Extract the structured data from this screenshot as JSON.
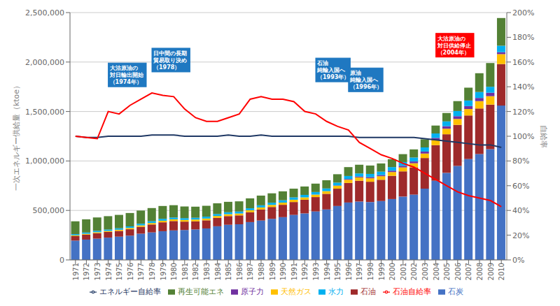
{
  "chart_data": {
    "type": "bar",
    "stacked": true,
    "grid": true,
    "legend": "bottom",
    "categories": [
      "1971",
      "1972",
      "1973",
      "1974",
      "1975",
      "1976",
      "1977",
      "1978",
      "1979",
      "1980",
      "1981",
      "1982",
      "1983",
      "1984",
      "1985",
      "1986",
      "1987",
      "1988",
      "1989",
      "1990",
      "1991",
      "1992",
      "1993",
      "1994",
      "1995",
      "1996",
      "1997",
      "1998",
      "1999",
      "2000",
      "2001",
      "2002",
      "2003",
      "2004",
      "2005",
      "2006",
      "2007",
      "2008",
      "2009",
      "2010"
    ],
    "series": [
      {
        "name": "石炭",
        "color": "#4472C4",
        "values": [
          195000,
          205000,
          215000,
          225000,
          235000,
          245000,
          265000,
          278000,
          290000,
          298000,
          302000,
          308000,
          318000,
          340000,
          355000,
          360000,
          382000,
          398000,
          415000,
          432000,
          455000,
          470000,
          490000,
          510000,
          545000,
          580000,
          590000,
          585000,
          595000,
          615000,
          640000,
          660000,
          720000,
          800000,
          880000,
          950000,
          1020000,
          1070000,
          1120000,
          1560000
        ]
      },
      {
        "name": "石油",
        "color": "#9E2A2B",
        "values": [
          45000,
          50000,
          55000,
          58000,
          58000,
          65000,
          70000,
          80000,
          90000,
          95000,
          85000,
          82000,
          82000,
          85000,
          88000,
          90000,
          100000,
          112000,
          120000,
          125000,
          130000,
          138000,
          145000,
          158000,
          175000,
          198000,
          210000,
          205000,
          215000,
          235000,
          255000,
          275000,
          310000,
          360000,
          390000,
          415000,
          440000,
          460000,
          450000,
          420000
        ]
      },
      {
        "name": "天然ガス",
        "color": "#FFC000",
        "values": [
          8000,
          9000,
          10000,
          10000,
          12000,
          13000,
          14000,
          15000,
          16000,
          17000,
          17000,
          18000,
          18000,
          19000,
          19000,
          19000,
          20000,
          20000,
          21000,
          22000,
          23000,
          24000,
          25000,
          27000,
          29000,
          32000,
          34000,
          35000,
          36000,
          38000,
          40000,
          42000,
          45000,
          50000,
          56000,
          60000,
          65000,
          75000,
          85000,
          100000
        ]
      },
      {
        "name": "原子力",
        "color": "#7030A0",
        "values": [
          0,
          0,
          0,
          0,
          0,
          0,
          0,
          0,
          0,
          0,
          0,
          0,
          0,
          0,
          0,
          0,
          0,
          0,
          0,
          0,
          0,
          0,
          0,
          0,
          4000,
          8000,
          10000,
          12000,
          12000,
          14000,
          16000,
          18000,
          20000,
          23000,
          26000,
          28000,
          30000,
          32000,
          35000,
          20000
        ]
      },
      {
        "name": "水力",
        "color": "#00B0F0",
        "values": [
          12000,
          13000,
          14000,
          14000,
          15000,
          16000,
          17000,
          18000,
          19000,
          18000,
          18000,
          18000,
          19000,
          20000,
          20000,
          20000,
          20000,
          22000,
          22000,
          24000,
          24000,
          25000,
          26000,
          27000,
          28000,
          30000,
          30000,
          32000,
          34000,
          36000,
          38000,
          40000,
          42000,
          45000,
          48000,
          52000,
          56000,
          60000,
          60000,
          65000
        ]
      },
      {
        "name": "再生可能エネ",
        "color": "#538135",
        "values": [
          130000,
          133000,
          135000,
          135000,
          135000,
          135000,
          133000,
          133000,
          130000,
          125000,
          118000,
          112000,
          110000,
          108000,
          105000,
          103000,
          100000,
          98000,
          95000,
          90000,
          88000,
          85000,
          85000,
          83000,
          85000,
          90000,
          88000,
          85000,
          83000,
          80000,
          80000,
          82000,
          82000,
          80000,
          85000,
          100000,
          130000,
          190000,
          240000,
          280000
        ]
      },
      {
        "name": "エネルギー自給率",
        "type": "line",
        "axis": "y2",
        "color": "#1F3864",
        "values": [
          100,
          99,
          99,
          100,
          100,
          100,
          100,
          101,
          101,
          101,
          100,
          100,
          100,
          100,
          101,
          100,
          100,
          101,
          100,
          100,
          100,
          100,
          100,
          100,
          100,
          100,
          99,
          99,
          99,
          99,
          99,
          99,
          98,
          97,
          96,
          95,
          94,
          93,
          93,
          91
        ]
      },
      {
        "name": "石油自給率",
        "type": "line",
        "axis": "y2",
        "color": "#FF0000",
        "values": [
          100,
          99,
          98,
          120,
          118,
          125,
          130,
          135,
          133,
          132,
          122,
          115,
          112,
          112,
          115,
          118,
          130,
          132,
          130,
          130,
          128,
          120,
          118,
          112,
          108,
          105,
          95,
          90,
          85,
          82,
          78,
          75,
          70,
          65,
          60,
          55,
          52,
          50,
          48,
          43
        ]
      }
    ],
    "ylim": [
      0,
      2500000
    ],
    "yticks": [
      0,
      {
        "value": 500000,
        "label": "500,000"
      },
      {
        "value": 1000000,
        "label": "1,000,000"
      },
      {
        "value": 1500000,
        "label": "1,500,000"
      },
      {
        "value": 2000000,
        "label": "2,000,000"
      },
      {
        "value": 2500000,
        "label": "2,500,000"
      }
    ],
    "y2lim": [
      0,
      200
    ],
    "y2ticks": [
      {
        "value": 0,
        "label": "0%"
      },
      {
        "value": 20,
        "label": "20%"
      },
      {
        "value": 40,
        "label": "40%"
      },
      {
        "value": 60,
        "label": "60%"
      },
      {
        "value": 80,
        "label": "80%"
      },
      {
        "value": 100,
        "label": "100%"
      },
      {
        "value": 120,
        "label": "120%"
      },
      {
        "value": 140,
        "label": "140%"
      },
      {
        "value": 160,
        "label": "160%"
      },
      {
        "value": 180,
        "label": "180%"
      },
      {
        "value": 200,
        "label": "200%"
      }
    ],
    "ylabel": "一次エネルギー供給量（ktoe）",
    "y2label": "自給率",
    "annotations": [
      {
        "text": "大沽原油の\n対日輸出開始\n（1974年）",
        "x": "1974",
        "y": 1750000,
        "color": "#1F78C1"
      },
      {
        "text": "日中間の長期\n貿易取り決め\n（1978）",
        "x": "1978",
        "y": 1900000,
        "color": "#1F78C1"
      },
      {
        "text": "石油\n純輸入国へ\n（1993年）",
        "x": "1993",
        "y": 1800000,
        "color": "#1F78C1"
      },
      {
        "text": "原油\n純輸入国へ\n（1996年）",
        "x": "1996",
        "y": 1700000,
        "color": "#1F78C1"
      },
      {
        "text": "大沽原油の\n対日供給停止\n（2004年）",
        "x": "2004",
        "y": 2050000,
        "color": "#FF0000"
      }
    ]
  }
}
